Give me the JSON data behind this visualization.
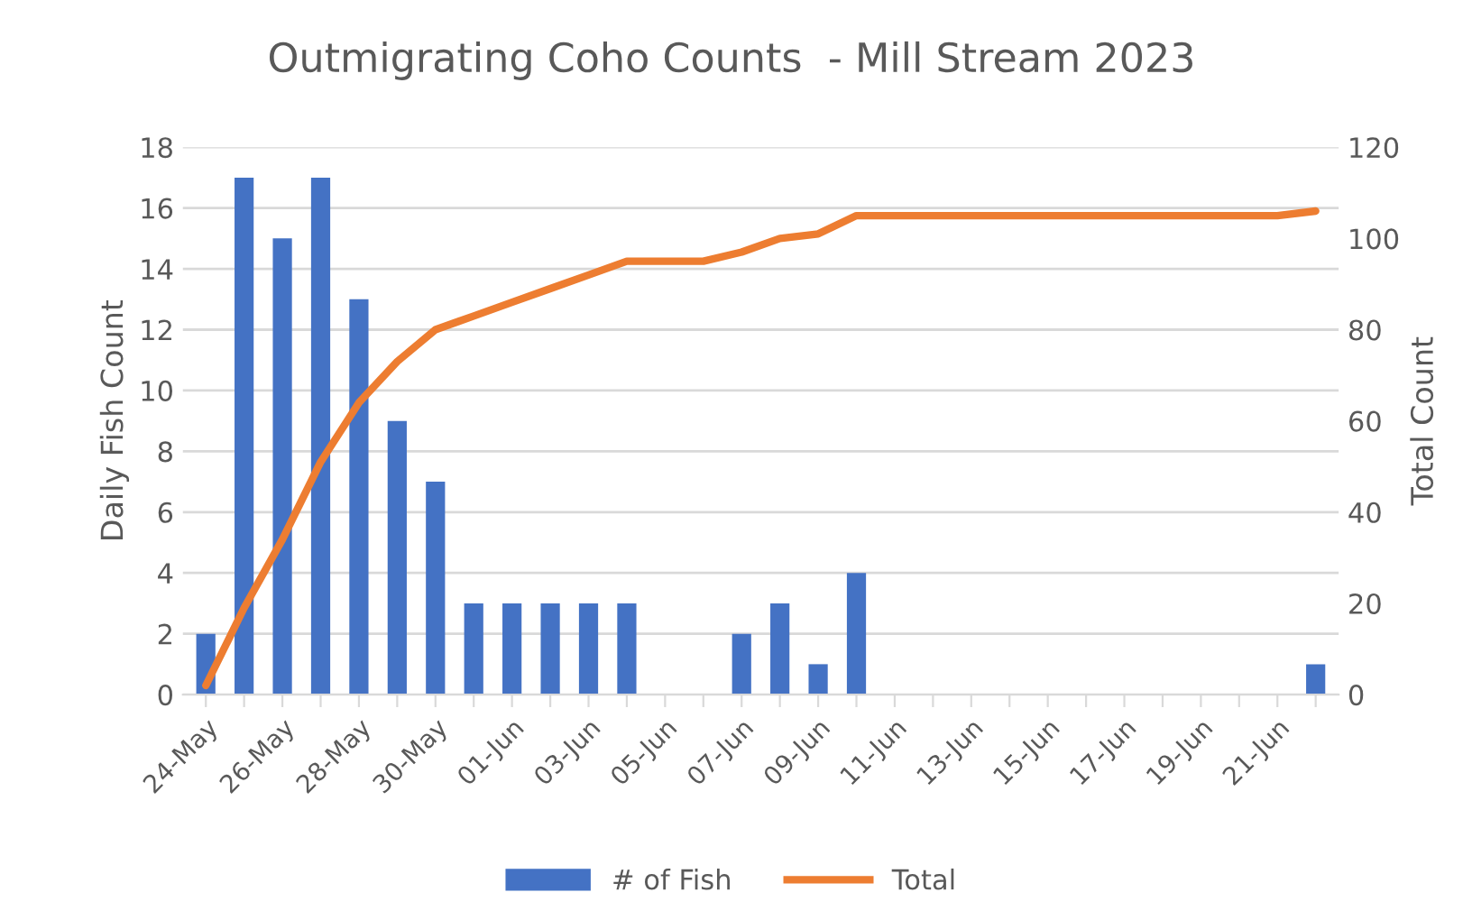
{
  "chart_data": {
    "type": "bar",
    "title": "Outmigrating Coho Counts  - Mill Stream 2023",
    "ylabel": "Daily Fish Count",
    "y2label": "Total Count",
    "categories": [
      "24-May",
      null,
      "26-May",
      null,
      "28-May",
      null,
      "30-May",
      null,
      "01-Jun",
      null,
      "03-Jun",
      null,
      "05-Jun",
      null,
      "07-Jun",
      null,
      "09-Jun",
      null,
      "11-Jun",
      null,
      "13-Jun",
      null,
      "15-Jun",
      null,
      "17-Jun",
      null,
      "19-Jun",
      null,
      "21-Jun",
      null
    ],
    "series": [
      {
        "name": "# of Fish",
        "color": "#4472c4",
        "values": [
          2,
          17,
          15,
          17,
          13,
          9,
          7,
          3,
          3,
          3,
          3,
          3,
          0,
          0,
          2,
          3,
          1,
          4,
          0,
          0,
          0,
          0,
          0,
          0,
          0,
          0,
          0,
          0,
          0,
          1
        ]
      },
      {
        "name": "Total",
        "type": "line",
        "axis": "y2",
        "color": "#ed7d31",
        "values": [
          2,
          19,
          34,
          51,
          64,
          73,
          80,
          83,
          86,
          89,
          92,
          95,
          95,
          95,
          97,
          100,
          101,
          105,
          105,
          105,
          105,
          105,
          105,
          105,
          105,
          105,
          105,
          105,
          105,
          106
        ]
      }
    ],
    "ylim": [
      0,
      18
    ],
    "yticks": [
      0,
      2,
      4,
      6,
      8,
      10,
      12,
      14,
      16,
      18
    ],
    "y2lim": [
      0,
      120
    ],
    "y2ticks": [
      0,
      20,
      40,
      60,
      80,
      100,
      120
    ],
    "grid": "y",
    "legend": "bottom"
  }
}
